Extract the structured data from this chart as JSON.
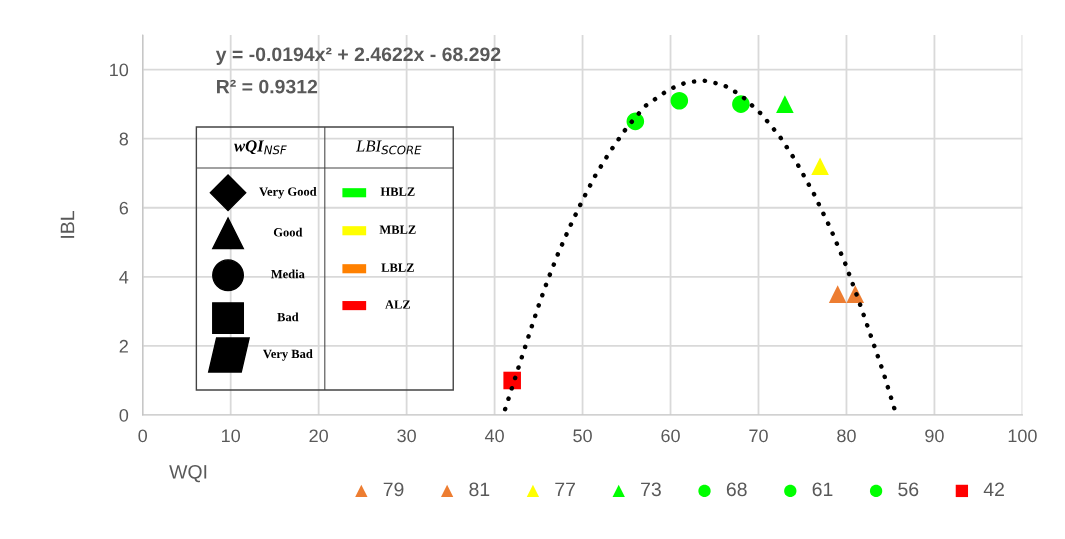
{
  "chart_data": {
    "type": "scatter",
    "xlabel": "WQI",
    "ylabel": "IBL",
    "xlim": [
      0,
      100
    ],
    "ylim": [
      0,
      11
    ],
    "xticks": [
      0,
      10,
      20,
      30,
      40,
      50,
      60,
      70,
      80,
      90,
      100
    ],
    "yticks": [
      0,
      2,
      4,
      6,
      8,
      10
    ],
    "grid": true,
    "legend": "bottom",
    "annotations": [
      "y = -0.0194x² + 2.4622x - 68.292",
      "R² = 0.9312",
      "wQI$_{NSF}$",
      "LBI$_{SCORE}$",
      "Very Good",
      "Good",
      "Media",
      "Bad",
      "Very Bad",
      "HBLZ",
      "MBLZ",
      "LBLZ",
      "ALZ"
    ],
    "series": [
      {
        "name": "79",
        "color": "#ed7d31",
        "marker": "triangle",
        "x": [
          79
        ],
        "values": [
          3.5
        ]
      },
      {
        "name": "81",
        "color": "#ed7d31",
        "marker": "triangle",
        "x": [
          81
        ],
        "values": [
          3.5
        ]
      },
      {
        "name": "77",
        "color": "#ffff00",
        "marker": "triangle",
        "x": [
          77
        ],
        "values": [
          7.2
        ]
      },
      {
        "name": "73",
        "color": "#00ff00",
        "marker": "triangle",
        "x": [
          73
        ],
        "values": [
          9.0
        ]
      },
      {
        "name": "68",
        "color": "#00ff00",
        "marker": "circle",
        "x": [
          68
        ],
        "values": [
          9.0
        ]
      },
      {
        "name": "61",
        "color": "#00ff00",
        "marker": "circle",
        "x": [
          61
        ],
        "values": [
          9.1
        ]
      },
      {
        "name": "56",
        "color": "#00ff00",
        "marker": "circle",
        "x": [
          56
        ],
        "values": [
          8.5
        ]
      },
      {
        "name": "42",
        "color": "#ff0000",
        "marker": "square",
        "x": [
          42
        ],
        "values": [
          1.0
        ]
      },
      {
        "type": "line",
        "color": "#000000",
        "line_style": "dotted",
        "marker": "none",
        "x": [
          41.2,
          42.9,
          43.9,
          44.9,
          46.0,
          47.2,
          48.5,
          49.9,
          51.4,
          53.1,
          55.0,
          57.1,
          59.8,
          61.8,
          63.8,
          66.0,
          68.0,
          70.3,
          72.4,
          74.2,
          76.3,
          78.2,
          79.9,
          81.4,
          82.8,
          84.2,
          85.5
        ],
        "values": [
          0.17,
          1.52,
          2.31,
          3.09,
          3.88,
          4.66,
          5.42,
          6.17,
          6.91,
          7.62,
          8.31,
          8.94,
          9.42,
          9.63,
          9.68,
          9.56,
          9.26,
          8.72,
          8.07,
          7.37,
          6.4,
          5.39,
          4.36,
          3.31,
          2.27,
          1.23,
          0.14
        ]
      }
    ]
  }
}
